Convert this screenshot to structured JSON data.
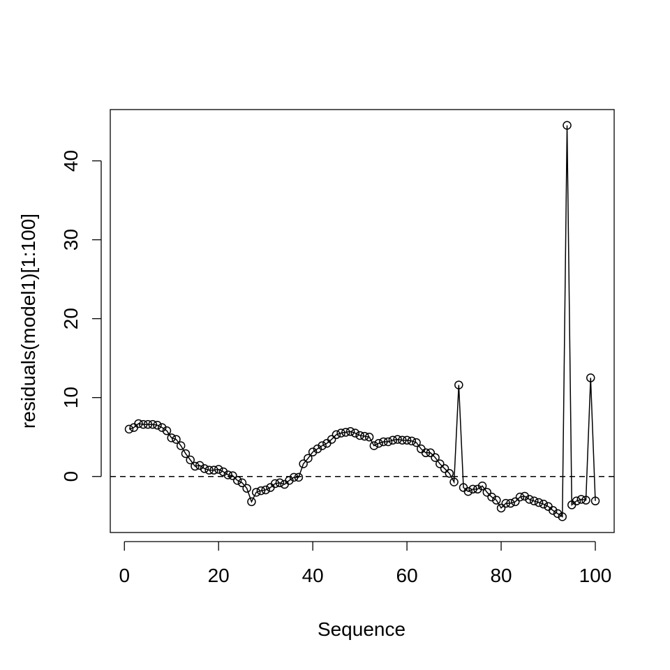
{
  "chart_data": {
    "type": "line",
    "title": "",
    "xlabel": "Sequence",
    "ylabel": "residuals(model1)[1:100]",
    "xlim": [
      -3,
      104
    ],
    "ylim": [
      -7.1,
      46.5
    ],
    "x_ticks": [
      0,
      20,
      40,
      60,
      80,
      100
    ],
    "y_ticks": [
      0,
      10,
      20,
      30,
      40
    ],
    "reference_line": {
      "y": 0,
      "style": "dashed"
    },
    "grid": false,
    "marker": "open-circle",
    "series": [
      {
        "x": [
          1,
          2,
          3,
          4,
          5,
          6,
          7,
          8,
          9,
          10,
          11,
          12,
          13,
          14,
          15,
          16,
          17,
          18,
          19,
          20,
          21,
          22,
          23,
          24,
          25,
          26,
          27,
          28,
          29,
          30,
          31,
          32,
          33,
          34,
          35,
          36,
          37,
          38,
          39,
          40,
          41,
          42,
          43,
          44,
          45,
          46,
          47,
          48,
          49,
          50,
          51,
          52,
          53,
          54,
          55,
          56,
          57,
          58,
          59,
          60,
          61,
          62,
          63,
          64,
          65,
          66,
          67,
          68,
          69,
          70,
          71,
          72,
          73,
          74,
          75,
          76,
          77,
          78,
          79,
          80,
          81,
          82,
          83,
          84,
          85,
          86,
          87,
          88,
          89,
          90,
          91,
          92,
          93,
          94,
          95,
          96,
          97,
          98,
          99,
          100
        ],
        "values": [
          6.0,
          6.2,
          6.7,
          6.6,
          6.6,
          6.6,
          6.5,
          6.2,
          5.8,
          4.9,
          4.7,
          3.9,
          2.9,
          2.1,
          1.3,
          1.4,
          1.0,
          0.8,
          0.8,
          0.9,
          0.6,
          0.2,
          0.1,
          -0.5,
          -0.8,
          -1.5,
          -3.2,
          -2.0,
          -1.8,
          -1.7,
          -1.4,
          -0.9,
          -0.8,
          -1.0,
          -0.5,
          -0.1,
          -0.1,
          1.6,
          2.3,
          3.1,
          3.5,
          3.9,
          4.2,
          4.7,
          5.3,
          5.5,
          5.6,
          5.7,
          5.5,
          5.2,
          5.1,
          5.0,
          3.9,
          4.2,
          4.4,
          4.4,
          4.6,
          4.7,
          4.6,
          4.6,
          4.5,
          4.3,
          3.5,
          3.0,
          3.0,
          2.4,
          1.6,
          1.0,
          0.4,
          -0.7,
          11.6,
          -1.4,
          -1.9,
          -1.6,
          -1.6,
          -1.2,
          -2.0,
          -2.6,
          -3.0,
          -4.0,
          -3.4,
          -3.4,
          -3.2,
          -2.6,
          -2.5,
          -2.9,
          -3.1,
          -3.3,
          -3.5,
          -3.8,
          -4.3,
          -4.7,
          -5.1,
          44.5,
          -3.6,
          -3.1,
          -2.9,
          -3.0,
          12.5,
          -3.1
        ]
      }
    ]
  }
}
